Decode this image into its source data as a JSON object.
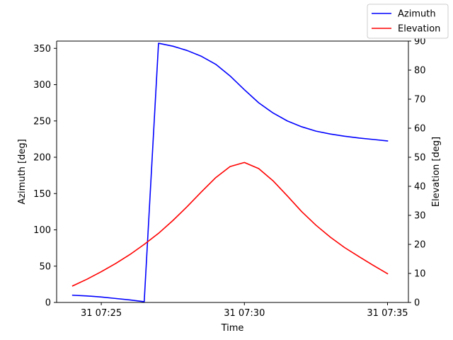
{
  "chart_data": {
    "type": "line",
    "xlabel": "Time",
    "ylabel_left": "Azimuth [deg]",
    "ylabel_right": "Elevation [deg]",
    "x_ticks": [
      {
        "t": 25,
        "label": "31 07:25"
      },
      {
        "t": 30,
        "label": "31 07:30"
      },
      {
        "t": 35,
        "label": "31 07:35"
      }
    ],
    "xlim": [
      23.44,
      35.73
    ],
    "ylim_left": [
      0,
      360
    ],
    "ylim_right": [
      0,
      90
    ],
    "y_ticks_left": [
      0,
      50,
      100,
      150,
      200,
      250,
      300,
      350
    ],
    "y_ticks_right": [
      0,
      10,
      20,
      30,
      40,
      50,
      60,
      70,
      80,
      90
    ],
    "legend_position": "top-right",
    "grid": false,
    "series": [
      {
        "name": "Azimuth",
        "axis": "left",
        "color": "#0000ff",
        "x": [
          24.0,
          24.5,
          25.0,
          25.5,
          26.0,
          26.5,
          27.0,
          27.5,
          28.0,
          28.5,
          29.0,
          29.5,
          30.0,
          30.5,
          31.0,
          31.5,
          32.0,
          32.5,
          33.0,
          33.5,
          34.0,
          34.5,
          35.0
        ],
        "values": [
          10,
          9,
          7.5,
          5.5,
          3.5,
          1,
          357,
          353,
          347,
          339,
          328,
          312,
          293,
          275,
          261,
          250,
          242,
          236,
          232,
          229,
          226.5,
          224.5,
          222.5
        ]
      },
      {
        "name": "Elevation",
        "axis": "right",
        "color": "#ff0000",
        "x": [
          24.0,
          24.5,
          25.0,
          25.5,
          26.0,
          26.5,
          27.0,
          27.5,
          28.0,
          28.5,
          29.0,
          29.5,
          30.0,
          30.5,
          31.0,
          31.5,
          32.0,
          32.5,
          33.0,
          33.5,
          34.0,
          34.5,
          35.0
        ],
        "values": [
          5.7,
          8.0,
          10.6,
          13.4,
          16.5,
          20.0,
          23.8,
          28.2,
          33.0,
          38.1,
          43.0,
          46.8,
          48.2,
          46.1,
          41.9,
          36.7,
          31.3,
          26.6,
          22.5,
          18.9,
          15.8,
          12.8,
          9.9
        ]
      }
    ]
  }
}
